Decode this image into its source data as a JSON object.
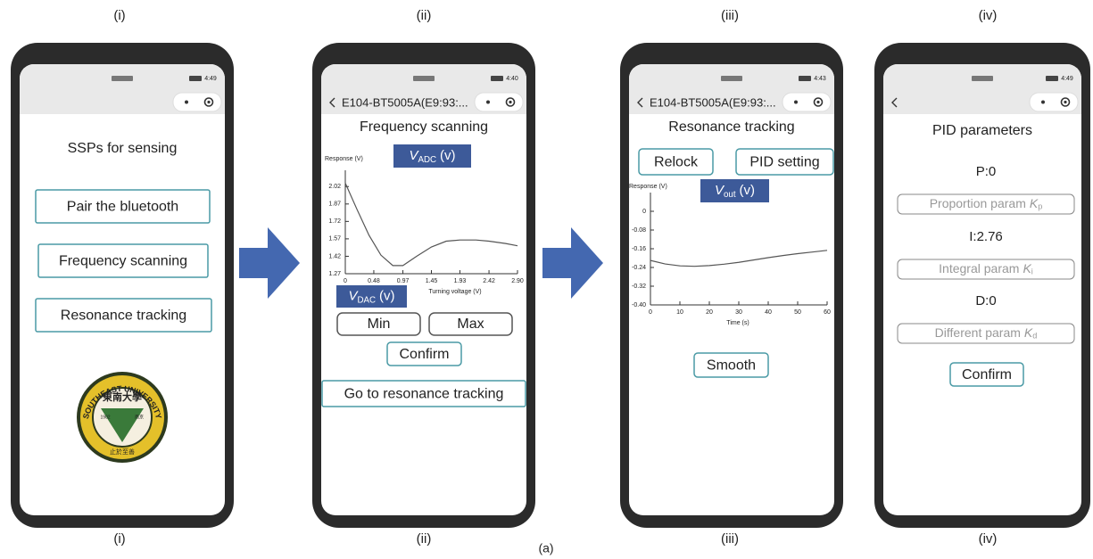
{
  "panel_labels_top": [
    "(i)",
    "(ii)",
    "(iii)",
    "(iv)"
  ],
  "panel_labels_bottom": [
    "(i)",
    "(ii)",
    "(iii)",
    "(iv)"
  ],
  "figure_label": "(a)",
  "phones": [
    {
      "status_time": "4:49",
      "title": "SSPs for sensing",
      "buttons": [
        "Pair the bluetooth",
        "Frequency scanning",
        "Resonance tracking"
      ],
      "logo": {
        "ring_text": "SOUTHEAST UNIVERSITY",
        "center_text": "東南大學",
        "left_text": "1902",
        "right_text": "南京",
        "bottom_text": "止於至善"
      }
    },
    {
      "status_time": "4:40",
      "nav_title": "E104-BT5005A(E9:93:...",
      "title": "Frequency scanning",
      "badge": {
        "symbol": "V",
        "subscript": "ADC",
        "unit": "(v)"
      },
      "chart": {
        "type": "line",
        "y_label": "Response (V)",
        "x_label": "Turning voltage (V)",
        "xlim": [
          0,
          2.9
        ],
        "xticks": [
          0,
          0.48,
          0.97,
          1.45,
          1.93,
          2.42,
          {
            "value": 2.9,
            "label": "2.90"
          }
        ],
        "ylim": [
          1.27,
          2.16
        ],
        "yticks": [
          1.27,
          1.42,
          1.57,
          1.72,
          1.87,
          2.02
        ],
        "x": [
          0,
          0.2,
          0.4,
          0.6,
          0.8,
          0.97,
          1.2,
          1.45,
          1.7,
          1.93,
          2.2,
          2.42,
          2.7,
          2.9
        ],
        "y": [
          2.05,
          1.82,
          1.6,
          1.43,
          1.34,
          1.34,
          1.42,
          1.5,
          1.55,
          1.56,
          1.56,
          1.55,
          1.53,
          1.51
        ],
        "color": "#555555"
      },
      "badge2": {
        "symbol": "V",
        "subscript": "DAC",
        "unit": "(v)"
      },
      "inputs": [
        "Min",
        "Max"
      ],
      "confirm": "Confirm",
      "go_button": "Go to resonance tracking"
    },
    {
      "status_time": "4:43",
      "nav_title": "E104-BT5005A(E9:93:...",
      "title": "Resonance tracking",
      "buttons": [
        "Relock",
        "PID setting"
      ],
      "badge": {
        "symbol": "V",
        "subscript": "out",
        "unit": "(v)"
      },
      "chart": {
        "type": "line",
        "y_label": "Response (V)",
        "x_label": "Time (s)",
        "xlim": [
          0,
          60
        ],
        "xticks": [
          0,
          10,
          20,
          30,
          40,
          50,
          60
        ],
        "ylim": [
          -0.4,
          0.08
        ],
        "yticks": [
          0,
          -0.08,
          -0.16,
          -0.24,
          -0.32,
          {
            "value": -0.4,
            "label": "-0.40"
          }
        ],
        "x": [
          0,
          5,
          10,
          15,
          20,
          25,
          30,
          35,
          40,
          45,
          50,
          55,
          60
        ],
        "y": [
          -0.21,
          -0.225,
          -0.233,
          -0.235,
          -0.232,
          -0.226,
          -0.218,
          -0.208,
          -0.198,
          -0.189,
          -0.181,
          -0.174,
          -0.167
        ],
        "color": "#555555"
      },
      "smooth": "Smooth"
    },
    {
      "status_time": "4:49",
      "title": "PID parameters",
      "params": [
        {
          "value_text": "P:0",
          "input": {
            "text": "Proportion param",
            "symbol": "K",
            "subscript": "p"
          }
        },
        {
          "value_text": "I:2.76",
          "input": {
            "text": "Integral param",
            "symbol": "K",
            "subscript": "i"
          }
        },
        {
          "value_text": "D:0",
          "input": {
            "text": "Different param",
            "symbol": "K",
            "subscript": "d"
          }
        }
      ],
      "confirm": "Confirm"
    }
  ]
}
